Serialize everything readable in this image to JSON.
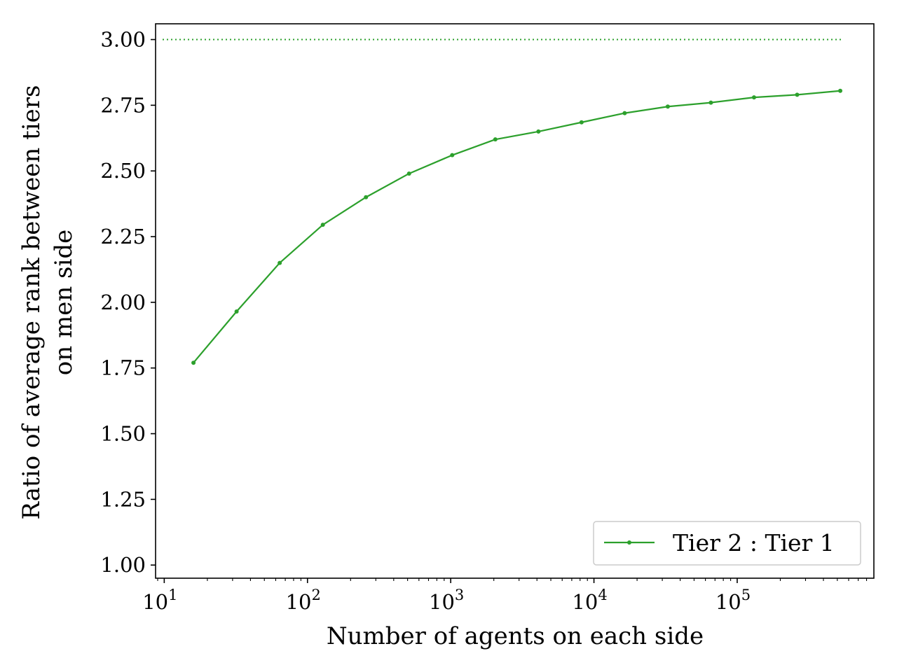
{
  "chart_data": {
    "type": "line",
    "xscale": "log",
    "xlabel": "Number of agents on each side",
    "ylabel": [
      "Ratio of average rank between tiers",
      "on men side"
    ],
    "xlim": [
      8.7,
      900000
    ],
    "ylim": [
      0.95,
      3.06
    ],
    "yticks": [
      1.0,
      1.25,
      1.5,
      1.75,
      2.0,
      2.25,
      2.5,
      2.75,
      3.0
    ],
    "ytick_labels": [
      "1.00",
      "1.25",
      "1.50",
      "1.75",
      "2.00",
      "2.25",
      "2.50",
      "2.75",
      "3.00"
    ],
    "xticks": [
      {
        "value": 10,
        "base": "10",
        "exp": "1"
      },
      {
        "value": 100,
        "base": "10",
        "exp": "2"
      },
      {
        "value": 1000,
        "base": "10",
        "exp": "3"
      },
      {
        "value": 10000,
        "base": "10",
        "exp": "4"
      },
      {
        "value": 100000,
        "base": "10",
        "exp": "5"
      }
    ],
    "series": [
      {
        "name": "Tier 2 : Tier 1",
        "color": "#2ca02c",
        "x": [
          16,
          32,
          64,
          128,
          256,
          512,
          1024,
          2048,
          4096,
          8192,
          16384,
          32768,
          65536,
          131072,
          262144,
          524288
        ],
        "y": [
          1.77,
          1.965,
          2.15,
          2.295,
          2.4,
          2.49,
          2.56,
          2.62,
          2.65,
          2.685,
          2.72,
          2.745,
          2.76,
          2.78,
          2.79,
          2.805
        ]
      }
    ],
    "reference_line": {
      "y": 3.0,
      "style": "dotted",
      "color": "#2ca02c"
    },
    "legend": {
      "position": "lower-right"
    },
    "grid": false
  }
}
